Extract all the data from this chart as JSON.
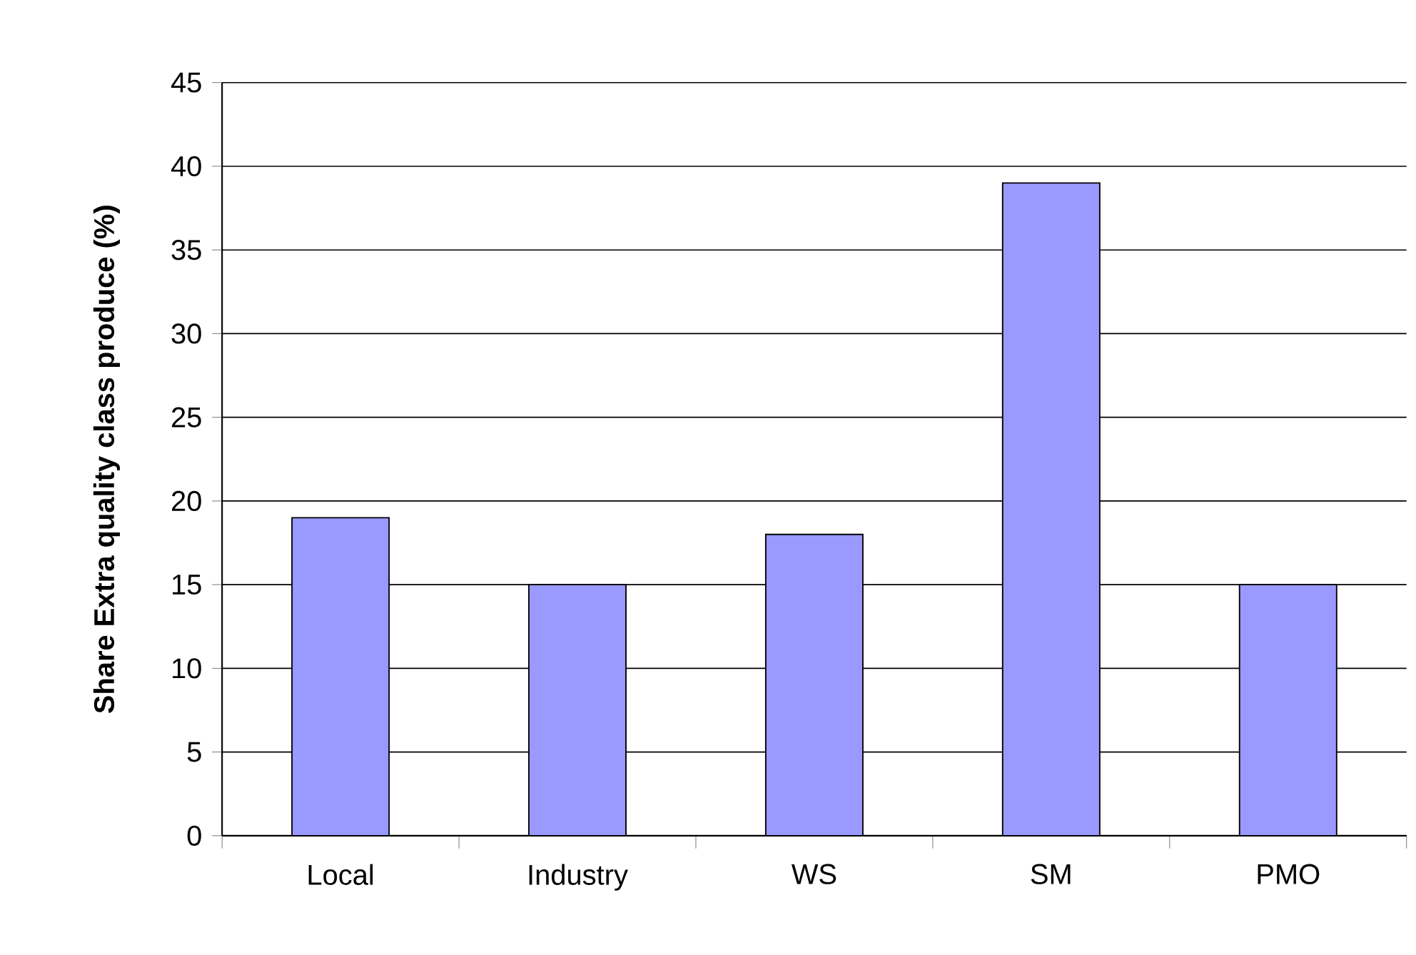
{
  "chart_data": {
    "type": "bar",
    "ylabel": "Share Extra quality class produce (%)",
    "categories": [
      "Local",
      "Industry",
      "WS",
      "SM",
      "PMO"
    ],
    "values": [
      19,
      15,
      18,
      39,
      15
    ],
    "color": "#9999ff",
    "ylim": [
      0,
      45
    ],
    "yticks": [
      0,
      5,
      10,
      15,
      20,
      25,
      30,
      35,
      40,
      45
    ],
    "grid": "y"
  }
}
